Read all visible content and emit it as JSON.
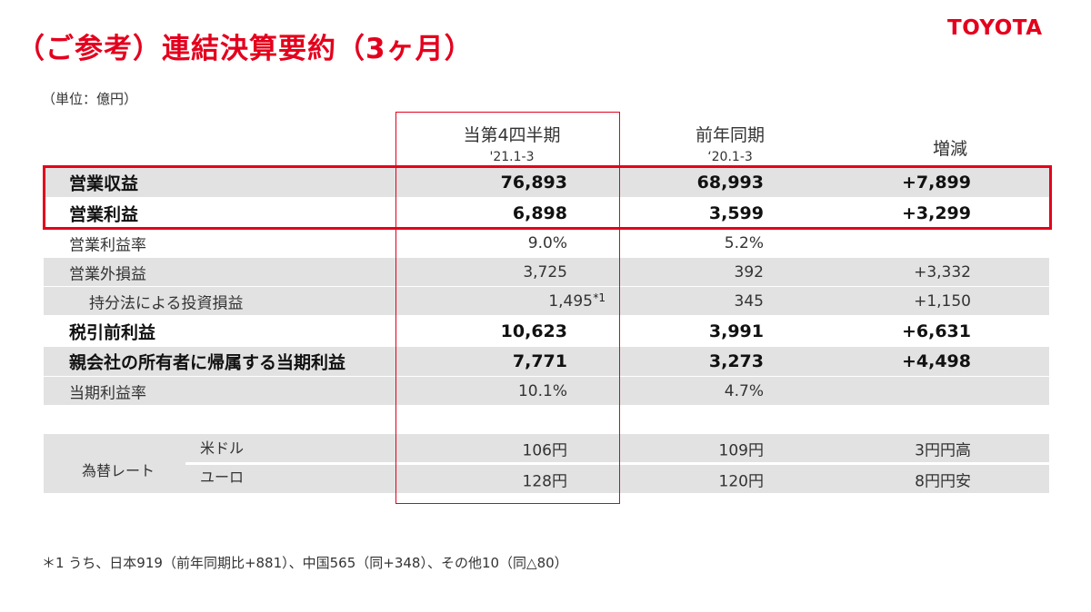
{
  "title": "（ご参考）連結決算要約（3ヶ月）",
  "logo": "TOYOTA",
  "unit": "（単位：億円）",
  "headers": {
    "col1_title": "当第4四半期",
    "col1_sub": "'21.1-3",
    "col2_title": "前年同期",
    "col2_sub": "‘20.1-3",
    "col3_title": "増減"
  },
  "rows": [
    {
      "label": "営業収益",
      "v1": "76,893",
      "v2": "68,993",
      "v3": "+7,899"
    },
    {
      "label": "営業利益",
      "v1": "6,898",
      "v2": "3,599",
      "v3": "+3,299"
    },
    {
      "label": "営業利益率",
      "v1": "9.0%",
      "v2": "5.2%",
      "v3": ""
    },
    {
      "label": "営業外損益",
      "v1": "3,725",
      "v2": "392",
      "v3": "+3,332"
    },
    {
      "label": "持分法による投資損益",
      "v1": "1,495",
      "v1_note": "*1",
      "v2": "345",
      "v3": "+1,150"
    },
    {
      "label": "税引前利益",
      "v1": "10,623",
      "v2": "3,991",
      "v3": "+6,631"
    },
    {
      "label": "親会社の所有者に帰属する当期利益",
      "v1": "7,771",
      "v2": "3,273",
      "v3": "+4,498"
    },
    {
      "label": "当期利益率",
      "v1": "10.1%",
      "v2": "4.7%",
      "v3": ""
    }
  ],
  "fx": {
    "label": "為替レート",
    "rows": [
      {
        "currency": "米ドル",
        "v1": "106円",
        "v2": "109円",
        "v3": "3円円高"
      },
      {
        "currency": "ユーロ",
        "v1": "128円",
        "v2": "120円",
        "v3": "8円円安"
      }
    ]
  },
  "footnote": "＊1 うち、日本919（前年同期比+881）、中国565（同+348）、その他10（同△80）",
  "colors": {
    "accent": "#e4001d",
    "row_shade": "#e2e2e2"
  }
}
